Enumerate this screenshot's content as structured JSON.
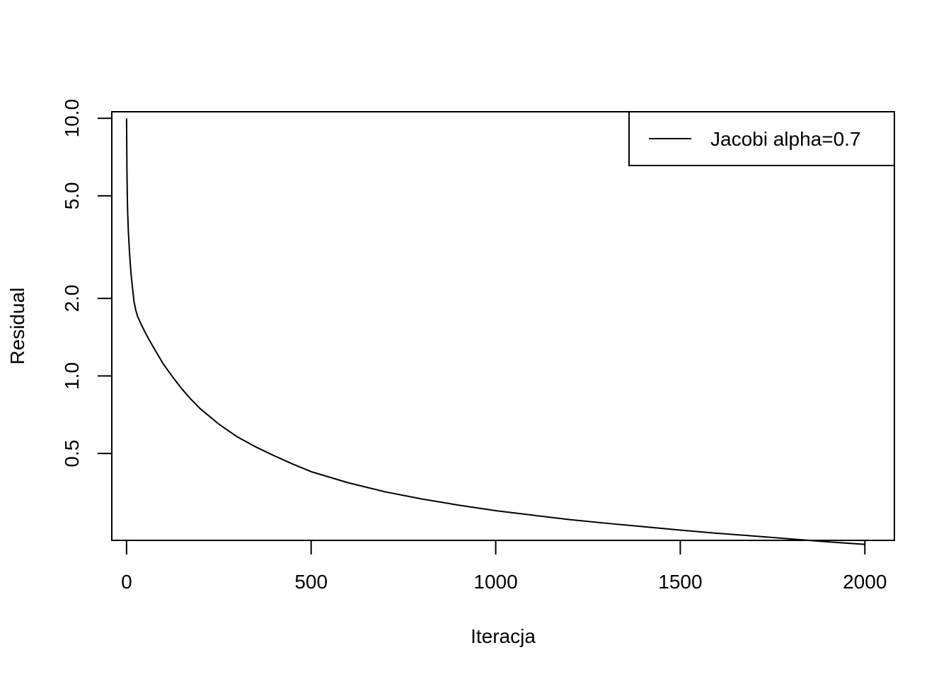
{
  "chart_data": {
    "type": "line",
    "title": "",
    "xlabel": "Iteracja",
    "ylabel": "Residual",
    "xlim": [
      -40,
      2080
    ],
    "ylim": [
      0.23,
      10.6
    ],
    "y_scale": "log",
    "x_ticks": [
      0,
      500,
      1000,
      1500,
      2000
    ],
    "x_tick_labels": [
      "0",
      "500",
      "1000",
      "1500",
      "2000"
    ],
    "y_ticks": [
      0.5,
      1.0,
      2.0,
      5.0,
      10.0
    ],
    "y_tick_labels": [
      "0.5",
      "1.0",
      "2.0",
      "5.0",
      "10.0"
    ],
    "grid": false,
    "legend_position": "top-right",
    "series": [
      {
        "name": "Jacobi alpha=0.7",
        "color": "#000000",
        "x": [
          0,
          1,
          2,
          3,
          5,
          8,
          12,
          16,
          20,
          25,
          30,
          40,
          50,
          60,
          80,
          100,
          125,
          150,
          175,
          200,
          250,
          300,
          350,
          400,
          450,
          500,
          600,
          700,
          800,
          900,
          1000,
          1100,
          1200,
          1300,
          1400,
          1500,
          1600,
          1700,
          1800,
          1900,
          2000
        ],
        "y": [
          10.0,
          6.3,
          5.0,
          4.3,
          3.6,
          3.0,
          2.5,
          2.2,
          1.95,
          1.8,
          1.7,
          1.58,
          1.48,
          1.39,
          1.24,
          1.11,
          0.99,
          0.89,
          0.81,
          0.745,
          0.65,
          0.58,
          0.53,
          0.49,
          0.455,
          0.425,
          0.385,
          0.355,
          0.333,
          0.315,
          0.3,
          0.288,
          0.277,
          0.268,
          0.26,
          0.252,
          0.245,
          0.239,
          0.233,
          0.227,
          0.222
        ]
      }
    ]
  }
}
